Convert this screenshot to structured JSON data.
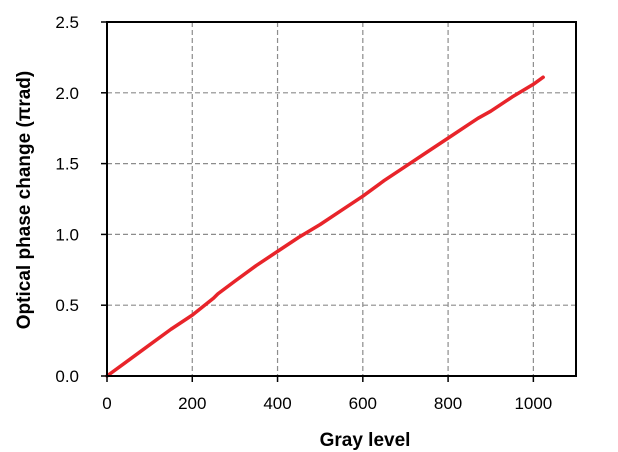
{
  "chart_data": {
    "type": "line",
    "title": "",
    "xlabel": "Gray level",
    "ylabel": "Optical phase change  (πrad)",
    "xlim": [
      0,
      1100
    ],
    "ylim": [
      0,
      2.5
    ],
    "xticks": [
      0,
      200,
      400,
      600,
      800,
      1000
    ],
    "xtick_labels": [
      "0",
      "200",
      "400",
      "600",
      "800",
      "1000"
    ],
    "yticks": [
      0.0,
      0.5,
      1.0,
      1.5,
      2.0,
      2.5
    ],
    "ytick_labels": [
      "0.0",
      "0.5",
      "1.0",
      "1.5",
      "2.0",
      "2.5"
    ],
    "grid": true,
    "grid_style": "dashed",
    "legend": "none",
    "series": [
      {
        "color": "#e8242a",
        "x": [
          0,
          50,
          100,
          150,
          200,
          250,
          260,
          300,
          350,
          400,
          450,
          500,
          550,
          600,
          650,
          700,
          750,
          800,
          850,
          870,
          900,
          950,
          1000,
          1023
        ],
        "y": [
          0.0,
          0.11,
          0.22,
          0.33,
          0.43,
          0.55,
          0.58,
          0.67,
          0.78,
          0.88,
          0.98,
          1.07,
          1.17,
          1.27,
          1.38,
          1.48,
          1.58,
          1.68,
          1.78,
          1.82,
          1.87,
          1.97,
          2.06,
          2.11
        ]
      }
    ]
  }
}
